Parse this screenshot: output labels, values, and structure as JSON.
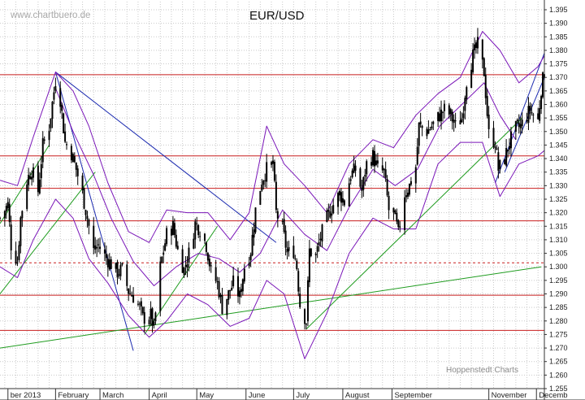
{
  "chart_data": {
    "type": "candlestick",
    "title": "EUR/USD",
    "source_label": "www.chartbuero.de",
    "credit_label": "Hoppenstedt Charts",
    "ylim": [
      1.255,
      1.398
    ],
    "y_ticks": [
      "1.255",
      "1.260",
      "1.265",
      "1.270",
      "1.275",
      "1.280",
      "1.285",
      "1.290",
      "1.295",
      "1.300",
      "1.305",
      "1.310",
      "1.315",
      "1.320",
      "1.325",
      "1.330",
      "1.335",
      "1.340",
      "1.345",
      "1.350",
      "1.355",
      "1.360",
      "1.365",
      "1.370",
      "1.375",
      "1.380",
      "1.385",
      "1.390",
      "1.395"
    ],
    "x_range": [
      "2012-12-28",
      "2013-12-06"
    ],
    "x_ticks": [
      {
        "date": "2013-01-02",
        "label": "ber 2013"
      },
      {
        "date": "2013-02-01",
        "label": "February"
      },
      {
        "date": "2013-03-01",
        "label": "March"
      },
      {
        "date": "2013-04-01",
        "label": "April"
      },
      {
        "date": "2013-05-01",
        "label": "May"
      },
      {
        "date": "2013-06-01",
        "label": "June"
      },
      {
        "date": "2013-07-01",
        "label": "July"
      },
      {
        "date": "2013-08-01",
        "label": "August"
      },
      {
        "date": "2013-09-01",
        "label": "September"
      },
      {
        "date": "2013-11-01",
        "label": "November"
      },
      {
        "date": "2013-12-01",
        "label": "Decemb"
      }
    ],
    "grid": true,
    "horizontal_levels": [
      {
        "y": 1.371,
        "style": "solid"
      },
      {
        "y": 1.341,
        "style": "solid"
      },
      {
        "y": 1.329,
        "style": "solid"
      },
      {
        "y": 1.317,
        "style": "solid"
      },
      {
        "y": 1.3015,
        "style": "dashed"
      },
      {
        "y": 1.2895,
        "style": "solid"
      },
      {
        "y": 1.2765,
        "style": "solid"
      }
    ],
    "price_path": [
      [
        "2012-12-28",
        1.318
      ],
      [
        "2013-01-02",
        1.323
      ],
      [
        "2013-01-04",
        1.308
      ],
      [
        "2013-01-08",
        1.302
      ],
      [
        "2013-01-10",
        1.318
      ],
      [
        "2013-01-14",
        1.332
      ],
      [
        "2013-01-17",
        1.336
      ],
      [
        "2013-01-21",
        1.328
      ],
      [
        "2013-01-24",
        1.345
      ],
      [
        "2013-01-28",
        1.352
      ],
      [
        "2013-02-01",
        1.369
      ],
      [
        "2013-02-04",
        1.362
      ],
      [
        "2013-02-07",
        1.346
      ],
      [
        "2013-02-11",
        1.342
      ],
      [
        "2013-02-14",
        1.336
      ],
      [
        "2013-02-18",
        1.327
      ],
      [
        "2013-02-21",
        1.318
      ],
      [
        "2013-02-25",
        1.306
      ],
      [
        "2013-02-28",
        1.308
      ],
      [
        "2013-03-04",
        1.304
      ],
      [
        "2013-03-08",
        1.301
      ],
      [
        "2013-03-12",
        1.298
      ],
      [
        "2013-03-15",
        1.299
      ],
      [
        "2013-03-19",
        1.291
      ],
      [
        "2013-03-22",
        1.289
      ],
      [
        "2013-03-26",
        1.285
      ],
      [
        "2013-03-28",
        1.281
      ],
      [
        "2013-04-02",
        1.282
      ],
      [
        "2013-04-04",
        1.277
      ],
      [
        "2013-04-08",
        1.3
      ],
      [
        "2013-04-12",
        1.312
      ],
      [
        "2013-04-16",
        1.315
      ],
      [
        "2013-04-19",
        1.306
      ],
      [
        "2013-04-23",
        1.299
      ],
      [
        "2013-04-26",
        1.305
      ],
      [
        "2013-04-30",
        1.316
      ],
      [
        "2013-05-03",
        1.314
      ],
      [
        "2013-05-07",
        1.308
      ],
      [
        "2013-05-10",
        1.298
      ],
      [
        "2013-05-14",
        1.294
      ],
      [
        "2013-05-17",
        1.285
      ],
      [
        "2013-05-21",
        1.29
      ],
      [
        "2013-05-24",
        1.294
      ],
      [
        "2013-05-28",
        1.289
      ],
      [
        "2013-05-31",
        1.3
      ],
      [
        "2013-06-04",
        1.306
      ],
      [
        "2013-06-07",
        1.321
      ],
      [
        "2013-06-11",
        1.332
      ],
      [
        "2013-06-14",
        1.336
      ],
      [
        "2013-06-18",
        1.338
      ],
      [
        "2013-06-20",
        1.32
      ],
      [
        "2013-06-24",
        1.314
      ],
      [
        "2013-06-27",
        1.305
      ],
      [
        "2013-07-01",
        1.306
      ],
      [
        "2013-07-03",
        1.3
      ],
      [
        "2013-07-05",
        1.286
      ],
      [
        "2013-07-09",
        1.28
      ],
      [
        "2013-07-11",
        1.306
      ],
      [
        "2013-07-15",
        1.304
      ],
      [
        "2013-07-18",
        1.311
      ],
      [
        "2013-07-22",
        1.318
      ],
      [
        "2013-07-25",
        1.322
      ],
      [
        "2013-07-30",
        1.327
      ],
      [
        "2013-08-02",
        1.324
      ],
      [
        "2013-08-06",
        1.334
      ],
      [
        "2013-08-09",
        1.336
      ],
      [
        "2013-08-13",
        1.328
      ],
      [
        "2013-08-16",
        1.338
      ],
      [
        "2013-08-20",
        1.341
      ],
      [
        "2013-08-23",
        1.336
      ],
      [
        "2013-08-27",
        1.335
      ],
      [
        "2013-08-30",
        1.321
      ],
      [
        "2013-09-03",
        1.318
      ],
      [
        "2013-09-05",
        1.312
      ],
      [
        "2013-09-09",
        1.327
      ],
      [
        "2013-09-12",
        1.33
      ],
      [
        "2013-09-16",
        1.337
      ],
      [
        "2013-09-18",
        1.352
      ],
      [
        "2013-09-23",
        1.35
      ],
      [
        "2013-09-26",
        1.352
      ],
      [
        "2013-10-01",
        1.356
      ],
      [
        "2013-10-04",
        1.358
      ],
      [
        "2013-10-08",
        1.356
      ],
      [
        "2013-10-11",
        1.352
      ],
      [
        "2013-10-15",
        1.355
      ],
      [
        "2013-10-18",
        1.369
      ],
      [
        "2013-10-22",
        1.378
      ],
      [
        "2013-10-25",
        1.382
      ],
      [
        "2013-10-29",
        1.372
      ],
      [
        "2013-11-01",
        1.349
      ],
      [
        "2013-11-05",
        1.346
      ],
      [
        "2013-11-07",
        1.336
      ],
      [
        "2013-11-11",
        1.34
      ],
      [
        "2013-11-14",
        1.346
      ],
      [
        "2013-11-18",
        1.351
      ],
      [
        "2013-11-21",
        1.352
      ],
      [
        "2013-11-25",
        1.356
      ],
      [
        "2013-11-27",
        1.358
      ],
      [
        "2013-12-02",
        1.354
      ],
      [
        "2013-12-04",
        1.366
      ],
      [
        "2013-12-06",
        1.372
      ]
    ],
    "bollinger_upper": [
      [
        "2012-12-28",
        1.332
      ],
      [
        "2013-01-08",
        1.33
      ],
      [
        "2013-01-18",
        1.348
      ],
      [
        "2013-02-01",
        1.372
      ],
      [
        "2013-02-12",
        1.365
      ],
      [
        "2013-02-22",
        1.352
      ],
      [
        "2013-03-06",
        1.331
      ],
      [
        "2013-03-19",
        1.313
      ],
      [
        "2013-04-01",
        1.309
      ],
      [
        "2013-04-12",
        1.321
      ],
      [
        "2013-04-25",
        1.32
      ],
      [
        "2013-05-08",
        1.32
      ],
      [
        "2013-05-22",
        1.31
      ],
      [
        "2013-06-03",
        1.32
      ],
      [
        "2013-06-14",
        1.352
      ],
      [
        "2013-06-25",
        1.338
      ],
      [
        "2013-07-08",
        1.33
      ],
      [
        "2013-07-22",
        1.32
      ],
      [
        "2013-08-05",
        1.338
      ],
      [
        "2013-08-20",
        1.347
      ],
      [
        "2013-09-02",
        1.344
      ],
      [
        "2013-09-16",
        1.356
      ],
      [
        "2013-09-30",
        1.364
      ],
      [
        "2013-10-14",
        1.37
      ],
      [
        "2013-10-28",
        1.387
      ],
      [
        "2013-11-08",
        1.38
      ],
      [
        "2013-11-20",
        1.368
      ],
      [
        "2013-12-02",
        1.374
      ],
      [
        "2013-12-06",
        1.378
      ]
    ],
    "bollinger_lower": [
      [
        "2012-12-28",
        1.3
      ],
      [
        "2013-01-08",
        1.296
      ],
      [
        "2013-01-18",
        1.31
      ],
      [
        "2013-02-01",
        1.325
      ],
      [
        "2013-02-12",
        1.318
      ],
      [
        "2013-02-22",
        1.303
      ],
      [
        "2013-03-06",
        1.294
      ],
      [
        "2013-03-19",
        1.282
      ],
      [
        "2013-04-01",
        1.274
      ],
      [
        "2013-04-12",
        1.28
      ],
      [
        "2013-04-25",
        1.29
      ],
      [
        "2013-05-08",
        1.286
      ],
      [
        "2013-05-22",
        1.278
      ],
      [
        "2013-06-03",
        1.281
      ],
      [
        "2013-06-14",
        1.295
      ],
      [
        "2013-06-25",
        1.29
      ],
      [
        "2013-07-08",
        1.266
      ],
      [
        "2013-07-22",
        1.283
      ],
      [
        "2013-08-05",
        1.305
      ],
      [
        "2013-08-20",
        1.318
      ],
      [
        "2013-09-02",
        1.314
      ],
      [
        "2013-09-16",
        1.314
      ],
      [
        "2013-09-30",
        1.338
      ],
      [
        "2013-10-14",
        1.346
      ],
      [
        "2013-10-28",
        1.346
      ],
      [
        "2013-11-08",
        1.326
      ],
      [
        "2013-11-20",
        1.338
      ],
      [
        "2013-12-02",
        1.341
      ],
      [
        "2013-12-06",
        1.343
      ]
    ],
    "bollinger_middle": [
      [
        "2013-02-01",
        1.366
      ],
      [
        "2013-02-12",
        1.35
      ],
      [
        "2013-02-25",
        1.334
      ],
      [
        "2013-03-08",
        1.318
      ],
      [
        "2013-03-22",
        1.302
      ],
      [
        "2013-04-04",
        1.293
      ],
      [
        "2013-04-18",
        1.3
      ],
      [
        "2013-05-02",
        1.305
      ],
      [
        "2013-05-15",
        1.303
      ],
      [
        "2013-05-28",
        1.298
      ],
      [
        "2013-06-10",
        1.305
      ],
      [
        "2013-06-24",
        1.321
      ],
      [
        "2013-07-08",
        1.312
      ],
      [
        "2013-07-22",
        1.306
      ],
      [
        "2013-08-05",
        1.322
      ],
      [
        "2013-08-20",
        1.336
      ],
      [
        "2013-09-03",
        1.33
      ],
      [
        "2013-09-17",
        1.336
      ],
      [
        "2013-10-01",
        1.352
      ],
      [
        "2013-10-15",
        1.36
      ],
      [
        "2013-10-29",
        1.368
      ],
      [
        "2013-11-08",
        1.356
      ],
      [
        "2013-11-18",
        1.347
      ]
    ],
    "trendlines": [
      {
        "color": "#1c2bb0",
        "from": [
          "2013-02-01",
          1.372
        ],
        "to": [
          "2013-06-20",
          1.309
        ]
      },
      {
        "color": "#1c2bb0",
        "from": [
          "2013-02-01",
          1.372
        ],
        "to": [
          "2013-03-22",
          1.269
        ]
      },
      {
        "color": "#1c2bb0",
        "from": [
          "2013-11-05",
          1.331
        ],
        "to": [
          "2013-12-06",
          1.379
        ]
      },
      {
        "color": "#1c2bb0",
        "from": [
          "2013-11-11",
          1.335
        ],
        "to": [
          "2013-12-06",
          1.37
        ]
      },
      {
        "color": "#1f9c1f",
        "from": [
          "2012-12-28",
          1.316
        ],
        "to": [
          "2013-01-28",
          1.345
        ]
      },
      {
        "color": "#1f9c1f",
        "from": [
          "2012-12-28",
          1.29
        ],
        "to": [
          "2013-02-26",
          1.335
        ]
      },
      {
        "color": "#1f9c1f",
        "from": [
          "2013-03-29",
          1.275
        ],
        "to": [
          "2013-05-14",
          1.315
        ]
      },
      {
        "color": "#1f9c1f",
        "from": [
          "2012-12-28",
          1.27
        ],
        "to": [
          "2013-12-04",
          1.3
        ]
      },
      {
        "color": "#1f9c1f",
        "from": [
          "2013-07-09",
          1.277
        ],
        "to": [
          "2013-11-22",
          1.355
        ]
      }
    ],
    "colors": {
      "candles": "#000000",
      "bollinger_bands": "#7a16b8",
      "horizontal_levels": "#c81e1e",
      "resistance_trendlines": "#1c2bb0",
      "support_trendlines": "#1f9c1f",
      "grid": "#c9c9c9"
    }
  }
}
